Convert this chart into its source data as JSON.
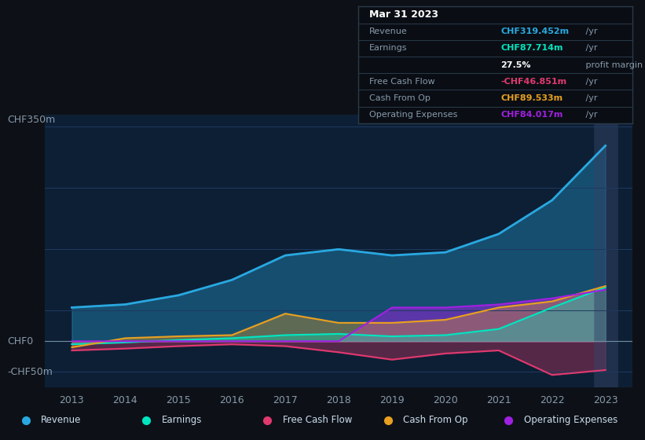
{
  "bg_color": "#0d1117",
  "plot_bg_color": "#0d1f35",
  "grid_color": "#1e3a5f",
  "years": [
    2013,
    2014,
    2015,
    2016,
    2017,
    2018,
    2019,
    2020,
    2021,
    2022,
    2023
  ],
  "revenue": [
    55,
    60,
    75,
    100,
    140,
    150,
    140,
    145,
    175,
    230,
    319
  ],
  "earnings": [
    -5,
    -2,
    2,
    5,
    10,
    12,
    8,
    10,
    20,
    55,
    88
  ],
  "free_cash": [
    -15,
    -12,
    -8,
    -5,
    -8,
    -18,
    -30,
    -20,
    -15,
    -55,
    -47
  ],
  "cash_op": [
    -10,
    5,
    8,
    10,
    45,
    30,
    30,
    35,
    55,
    65,
    90
  ],
  "op_expenses": [
    0,
    0,
    0,
    0,
    0,
    0,
    55,
    55,
    60,
    70,
    84
  ],
  "revenue_color": "#29a8e0",
  "earnings_color": "#00e5c0",
  "free_cash_color": "#e0396e",
  "cash_op_color": "#e8a020",
  "op_expenses_color": "#a020e0",
  "ylabel_350": "CHF350m",
  "ylabel_0": "CHF0",
  "ylabel_n50": "-CHF50m",
  "ylim": [
    -75,
    370
  ],
  "tooltip_bg": "#0a0e14",
  "tooltip_border": "#2a3a4a",
  "tooltip_rows": [
    {
      "label": "Mar 31 2023",
      "value": "",
      "suffix": "",
      "is_title": true,
      "value_color": "white",
      "bold_label": true
    },
    {
      "label": "Revenue",
      "value": "CHF319.452m",
      "suffix": " /yr",
      "is_title": false,
      "value_color": "#29a8e0",
      "bold_label": false
    },
    {
      "label": "Earnings",
      "value": "CHF87.714m",
      "suffix": " /yr",
      "is_title": false,
      "value_color": "#00e5c0",
      "bold_label": false
    },
    {
      "label": "",
      "value": "27.5%",
      "suffix": " profit margin",
      "is_title": false,
      "value_color": "white",
      "bold_label": false
    },
    {
      "label": "Free Cash Flow",
      "value": "-CHF46.851m",
      "suffix": " /yr",
      "is_title": false,
      "value_color": "#e0396e",
      "bold_label": false
    },
    {
      "label": "Cash From Op",
      "value": "CHF89.533m",
      "suffix": " /yr",
      "is_title": false,
      "value_color": "#e8a020",
      "bold_label": false
    },
    {
      "label": "Operating Expenses",
      "value": "CHF84.017m",
      "suffix": " /yr",
      "is_title": false,
      "value_color": "#a020e0",
      "bold_label": false
    }
  ],
  "legend_items": [
    {
      "label": "Revenue",
      "color": "#29a8e0"
    },
    {
      "label": "Earnings",
      "color": "#00e5c0"
    },
    {
      "label": "Free Cash Flow",
      "color": "#e0396e"
    },
    {
      "label": "Cash From Op",
      "color": "#e8a020"
    },
    {
      "label": "Operating Expenses",
      "color": "#a020e0"
    }
  ]
}
